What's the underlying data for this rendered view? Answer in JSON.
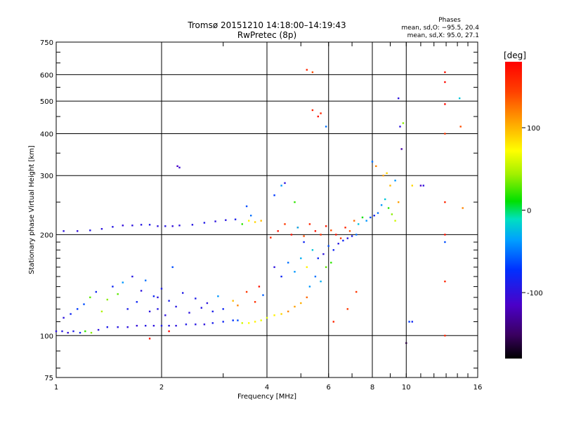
{
  "chart_data": {
    "type": "scatter",
    "title": "Tromsø 20151210 14:18:00–14:19:43",
    "subtitle": "RwPretec (8p)",
    "xlabel": "Frequency [MHz]",
    "ylabel": "Stationary phase Virtual Height [km]",
    "x_scale": "log",
    "y_scale": "log",
    "xlim": [
      1,
      16
    ],
    "ylim": [
      75,
      750
    ],
    "x_ticks": [
      1,
      2,
      4,
      6,
      8,
      10,
      16
    ],
    "x_tick_labels": [
      "1",
      "2",
      "4",
      "6",
      "8",
      "10",
      "16"
    ],
    "y_ticks": [
      75,
      100,
      200,
      300,
      400,
      500,
      600,
      750
    ],
    "y_tick_labels": [
      "75",
      "100",
      "200",
      "300",
      "400",
      "500",
      "600",
      "750"
    ],
    "grid": true,
    "phase_stats": {
      "heading": "Phases",
      "line_o": "mean, sd,O: −95.5, 20.4",
      "line_x": "mean, sd,X:  95.0, 27.1"
    },
    "colorbar": {
      "unit": "[deg]",
      "range": [
        -180,
        180
      ],
      "ticks": [
        100,
        0,
        -100
      ],
      "tick_labels": [
        "100",
        "0",
        "-100"
      ],
      "colormap": "rainbow (black-violet-blue-cyan-green-yellow-orange-red)"
    },
    "series": [
      {
        "points": [
          [
            1.0,
            103,
            -110
          ],
          [
            1.04,
            103,
            -108
          ],
          [
            1.08,
            102,
            -112
          ],
          [
            1.12,
            103,
            -105
          ],
          [
            1.17,
            102,
            -100
          ],
          [
            1.21,
            103,
            20
          ],
          [
            1.26,
            102,
            40
          ],
          [
            1.32,
            104,
            -110
          ],
          [
            1.4,
            106,
            -105
          ],
          [
            1.5,
            106,
            -108
          ],
          [
            1.6,
            106,
            -110
          ],
          [
            1.7,
            107,
            -112
          ],
          [
            1.8,
            107,
            -108
          ],
          [
            1.9,
            107,
            -110
          ],
          [
            2.0,
            107,
            -105
          ],
          [
            2.1,
            107,
            -108
          ],
          [
            2.2,
            107,
            -110
          ],
          [
            2.35,
            108,
            -106
          ],
          [
            2.5,
            108,
            -108
          ],
          [
            2.65,
            108,
            -110
          ],
          [
            2.8,
            109,
            -104
          ],
          [
            3.0,
            110,
            -100
          ],
          [
            3.2,
            111,
            -95
          ],
          [
            3.3,
            111,
            -80
          ],
          [
            3.4,
            109,
            60
          ],
          [
            3.55,
            109,
            75
          ],
          [
            3.7,
            110,
            80
          ],
          [
            3.85,
            111,
            70
          ],
          [
            4.0,
            113,
            65
          ],
          [
            4.2,
            115,
            80
          ],
          [
            4.4,
            116,
            90
          ],
          [
            4.6,
            118,
            120
          ],
          [
            4.8,
            122,
            110
          ],
          [
            5.0,
            125,
            105
          ],
          [
            5.2,
            130,
            130
          ],
          [
            1.05,
            113,
            -110
          ],
          [
            1.1,
            116,
            -100
          ],
          [
            1.15,
            120,
            -90
          ],
          [
            1.2,
            124,
            -80
          ],
          [
            1.25,
            130,
            30
          ],
          [
            1.3,
            135,
            -100
          ],
          [
            1.35,
            118,
            50
          ],
          [
            1.4,
            128,
            40
          ],
          [
            1.45,
            140,
            -100
          ],
          [
            1.5,
            133,
            30
          ],
          [
            1.55,
            144,
            -40
          ],
          [
            1.6,
            120,
            -105
          ],
          [
            1.65,
            150,
            -108
          ],
          [
            1.7,
            126,
            -100
          ],
          [
            1.75,
            136,
            -110
          ],
          [
            1.8,
            146,
            -60
          ],
          [
            1.85,
            118,
            -110
          ],
          [
            1.9,
            131,
            -100
          ],
          [
            1.95,
            120,
            -108
          ],
          [
            2.0,
            138,
            -105
          ],
          [
            2.05,
            115,
            -110
          ],
          [
            2.1,
            127,
            -104
          ],
          [
            2.2,
            122,
            -108
          ],
          [
            2.3,
            134,
            -106
          ],
          [
            2.4,
            117,
            -110
          ],
          [
            2.5,
            129,
            -105
          ],
          [
            2.6,
            121,
            -108
          ],
          [
            2.7,
            125,
            -110
          ],
          [
            2.8,
            118,
            -104
          ],
          [
            2.9,
            131,
            -40
          ],
          [
            3.0,
            120,
            -100
          ],
          [
            3.2,
            127,
            100
          ],
          [
            3.3,
            123,
            120
          ],
          [
            3.5,
            135,
            150
          ],
          [
            3.7,
            126,
            155
          ],
          [
            3.8,
            140,
            170
          ],
          [
            3.9,
            132,
            -70
          ],
          [
            1.05,
            205,
            -110
          ],
          [
            1.15,
            205,
            -112
          ],
          [
            1.25,
            206,
            -108
          ],
          [
            1.35,
            208,
            -110
          ],
          [
            1.45,
            211,
            -108
          ],
          [
            1.55,
            213,
            -112
          ],
          [
            1.65,
            213,
            -110
          ],
          [
            1.75,
            214,
            -108
          ],
          [
            1.85,
            214,
            -106
          ],
          [
            1.95,
            212,
            -110
          ],
          [
            2.05,
            212,
            -108
          ],
          [
            2.15,
            212,
            -112
          ],
          [
            2.25,
            213,
            -110
          ],
          [
            2.45,
            214,
            -108
          ],
          [
            2.65,
            217,
            -106
          ],
          [
            2.85,
            219,
            -110
          ],
          [
            3.05,
            221,
            -108
          ],
          [
            3.25,
            222,
            -104
          ],
          [
            3.4,
            215,
            20
          ],
          [
            3.55,
            220,
            80
          ],
          [
            3.7,
            218,
            90
          ],
          [
            3.85,
            220,
            100
          ],
          [
            3.5,
            243,
            -80
          ],
          [
            3.6,
            228,
            -60
          ],
          [
            4.2,
            262,
            -90
          ],
          [
            4.4,
            280,
            -40
          ],
          [
            4.5,
            285,
            -110
          ],
          [
            4.8,
            250,
            20
          ],
          [
            4.1,
            196,
            160
          ],
          [
            4.3,
            205,
            170
          ],
          [
            4.5,
            215,
            150
          ],
          [
            4.7,
            200,
            170
          ],
          [
            4.9,
            210,
            165
          ],
          [
            5.1,
            198,
            140
          ],
          [
            5.3,
            215,
            160
          ],
          [
            5.5,
            205,
            170
          ],
          [
            5.7,
            200,
            155
          ],
          [
            5.9,
            212,
            165
          ],
          [
            6.1,
            206,
            140
          ],
          [
            6.3,
            200,
            170
          ],
          [
            6.5,
            195,
            150
          ],
          [
            6.7,
            210,
            160
          ],
          [
            6.9,
            205,
            140
          ],
          [
            7.1,
            220,
            130
          ],
          [
            7.3,
            215,
            -20
          ],
          [
            7.5,
            225,
            10
          ],
          [
            7.7,
            220,
            -40
          ],
          [
            7.9,
            225,
            -80
          ],
          [
            8.1,
            228,
            -100
          ],
          [
            8.3,
            232,
            -60
          ],
          [
            8.5,
            245,
            -40
          ],
          [
            8.7,
            255,
            -20
          ],
          [
            8.9,
            240,
            20
          ],
          [
            9.1,
            230,
            40
          ],
          [
            9.3,
            220,
            60
          ],
          [
            9.5,
            250,
            110
          ],
          [
            4.2,
            160,
            -110
          ],
          [
            4.4,
            150,
            -100
          ],
          [
            4.6,
            165,
            -60
          ],
          [
            4.8,
            155,
            -40
          ],
          [
            5.0,
            170,
            -30
          ],
          [
            5.2,
            160,
            80
          ],
          [
            5.4,
            180,
            -20
          ],
          [
            5.6,
            170,
            -100
          ],
          [
            5.8,
            175,
            -110
          ],
          [
            6.0,
            185,
            -80
          ],
          [
            6.2,
            180,
            -100
          ],
          [
            6.4,
            188,
            -108
          ],
          [
            6.6,
            192,
            -100
          ],
          [
            6.8,
            195,
            -110
          ],
          [
            7.0,
            198,
            -104
          ],
          [
            7.2,
            200,
            -60
          ],
          [
            4.9,
            210,
            -30
          ],
          [
            5.1,
            190,
            -100
          ],
          [
            5.3,
            140,
            -40
          ],
          [
            5.5,
            150,
            -60
          ],
          [
            5.7,
            145,
            -30
          ],
          [
            5.9,
            160,
            30
          ],
          [
            6.1,
            165,
            20
          ],
          [
            5.2,
            620,
            160
          ],
          [
            5.4,
            610,
            140
          ],
          [
            5.4,
            470,
            160
          ],
          [
            5.6,
            450,
            170
          ],
          [
            5.7,
            460,
            160
          ],
          [
            5.9,
            420,
            -60
          ],
          [
            8.0,
            330,
            -60
          ],
          [
            8.2,
            320,
            120
          ],
          [
            8.6,
            300,
            110
          ],
          [
            8.8,
            305,
            90
          ],
          [
            9.0,
            280,
            100
          ],
          [
            9.3,
            290,
            -40
          ],
          [
            9.5,
            510,
            -110
          ],
          [
            9.6,
            420,
            -110
          ],
          [
            9.7,
            360,
            -130
          ],
          [
            9.8,
            430,
            40
          ],
          [
            10.4,
            280,
            90
          ],
          [
            11.0,
            280,
            -120
          ],
          [
            12.9,
            610,
            170
          ],
          [
            12.9,
            570,
            175
          ],
          [
            12.9,
            490,
            175
          ],
          [
            12.9,
            400,
            150
          ],
          [
            12.9,
            250,
            160
          ],
          [
            12.9,
            200,
            170
          ],
          [
            12.9,
            190,
            -80
          ],
          [
            12.9,
            145,
            160
          ],
          [
            12.9,
            100,
            160
          ],
          [
            14.2,
            510,
            -20
          ],
          [
            14.3,
            420,
            140
          ],
          [
            14.5,
            240,
            120
          ],
          [
            2.22,
            320,
            -120
          ],
          [
            2.25,
            317,
            -115
          ],
          [
            1.85,
            98,
            170
          ],
          [
            1.95,
            130,
            -110
          ],
          [
            2.1,
            103,
            175
          ],
          [
            2.15,
            160,
            -80
          ],
          [
            10.0,
            95,
            -160
          ],
          [
            10.2,
            110,
            -90
          ],
          [
            10.4,
            110,
            -100
          ],
          [
            11.2,
            280,
            -110
          ],
          [
            7.2,
            135,
            150
          ],
          [
            6.8,
            120,
            150
          ],
          [
            6.2,
            110,
            160
          ]
        ]
      }
    ]
  }
}
